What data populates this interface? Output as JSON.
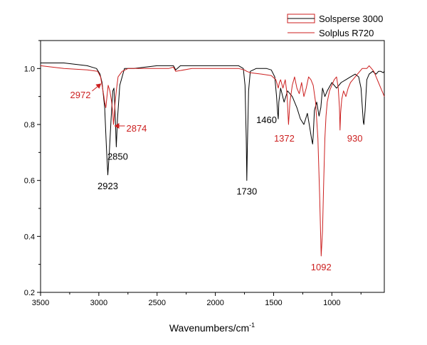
{
  "chart_data": {
    "type": "line",
    "title": "",
    "xlabel": "Wavenumbers/cm",
    "xlabel_superscript": "-1",
    "ylabel": "",
    "xlim": [
      3500,
      550
    ],
    "ylim": [
      0.2,
      1.1
    ],
    "x_reversed": true,
    "grid": false,
    "legend_position": "top-right",
    "x_ticks": [
      "3500",
      "3000",
      "2500",
      "2000",
      "1500",
      "1000"
    ],
    "y_ticks": [
      "0.2",
      "0.4",
      "0.6",
      "0.8",
      "1.0"
    ],
    "series": [
      {
        "name": "Solsperse 3000",
        "color": "#000000",
        "x": [
          3500,
          3300,
          3100,
          3020,
          2990,
          2972,
          2950,
          2935,
          2923,
          2910,
          2895,
          2880,
          2870,
          2860,
          2850,
          2840,
          2820,
          2780,
          2700,
          2500,
          2360,
          2340,
          2300,
          2000,
          1800,
          1760,
          1745,
          1735,
          1730,
          1725,
          1715,
          1700,
          1650,
          1560,
          1520,
          1490,
          1475,
          1465,
          1460,
          1455,
          1440,
          1410,
          1380,
          1340,
          1300,
          1270,
          1240,
          1210,
          1190,
          1175,
          1165,
          1160,
          1150,
          1130,
          1110,
          1095,
          1080,
          1060,
          1040,
          1000,
          960,
          920,
          880,
          840,
          800,
          770,
          750,
          740,
          730,
          725,
          715,
          700,
          680,
          650,
          620,
          600,
          580,
          560,
          550
        ],
        "y": [
          1.02,
          1.02,
          1.01,
          1.0,
          0.98,
          0.95,
          0.86,
          0.72,
          0.62,
          0.7,
          0.82,
          0.92,
          0.93,
          0.84,
          0.72,
          0.82,
          0.94,
          1.0,
          1.0,
          1.01,
          1.01,
          0.995,
          1.01,
          1.01,
          1.01,
          1.0,
          0.94,
          0.75,
          0.6,
          0.72,
          0.92,
          0.99,
          1.0,
          1.0,
          0.995,
          0.97,
          0.9,
          0.84,
          0.82,
          0.88,
          0.93,
          0.88,
          0.92,
          0.9,
          0.86,
          0.82,
          0.8,
          0.84,
          0.79,
          0.75,
          0.73,
          0.76,
          0.85,
          0.88,
          0.83,
          0.86,
          0.93,
          0.9,
          0.92,
          0.95,
          0.93,
          0.95,
          0.96,
          0.97,
          0.98,
          0.97,
          0.93,
          0.87,
          0.81,
          0.8,
          0.85,
          0.96,
          0.98,
          0.99,
          0.98,
          0.99,
          0.99,
          0.985,
          0.99
        ]
      },
      {
        "name": "Solplus R720",
        "color": "#cc1f1f",
        "x": [
          3500,
          3300,
          3100,
          3010,
          2985,
          2972,
          2960,
          2950,
          2940,
          2930,
          2920,
          2905,
          2890,
          2880,
          2874,
          2868,
          2860,
          2850,
          2835,
          2800,
          2750,
          2600,
          2400,
          2360,
          2340,
          2200,
          2000,
          1800,
          1750,
          1730,
          1700,
          1600,
          1520,
          1480,
          1460,
          1450,
          1440,
          1420,
          1400,
          1385,
          1372,
          1360,
          1340,
          1320,
          1300,
          1280,
          1260,
          1240,
          1220,
          1200,
          1180,
          1160,
          1140,
          1120,
          1105,
          1092,
          1080,
          1070,
          1060,
          1050,
          1040,
          1020,
          1000,
          980,
          960,
          945,
          935,
          930,
          925,
          915,
          900,
          880,
          860,
          840,
          820,
          800,
          780,
          760,
          740,
          720,
          700,
          680,
          660,
          640,
          620,
          600,
          580,
          560,
          550
        ],
        "y": [
          1.01,
          1.0,
          0.995,
          0.99,
          0.97,
          0.94,
          0.91,
          0.88,
          0.86,
          0.9,
          0.94,
          0.92,
          0.88,
          0.84,
          0.8,
          0.83,
          0.88,
          0.92,
          0.97,
          0.99,
          1.0,
          1.0,
          1.0,
          1.005,
          0.99,
          1.0,
          1.0,
          1.0,
          0.995,
          0.99,
          0.985,
          0.98,
          0.975,
          0.96,
          0.93,
          0.95,
          0.96,
          0.93,
          0.96,
          0.91,
          0.8,
          0.88,
          0.94,
          0.97,
          0.93,
          0.91,
          0.95,
          0.9,
          0.93,
          0.97,
          0.96,
          0.94,
          0.88,
          0.75,
          0.55,
          0.33,
          0.42,
          0.6,
          0.75,
          0.83,
          0.88,
          0.92,
          0.94,
          0.96,
          0.97,
          0.93,
          0.86,
          0.78,
          0.84,
          0.89,
          0.92,
          0.9,
          0.93,
          0.95,
          0.96,
          0.97,
          0.98,
          0.99,
          1.0,
          1.0,
          1.0,
          1.01,
          1.0,
          0.99,
          0.97,
          0.95,
          0.93,
          0.91,
          0.9
        ]
      }
    ],
    "annotations": [
      {
        "text": "2972",
        "x": 2972,
        "y": 0.95,
        "color": "#cc1f1f",
        "arrow": true,
        "anchor": "left"
      },
      {
        "text": "2874",
        "x": 2874,
        "y": 0.8,
        "color": "#cc1f1f",
        "arrow": true,
        "anchor": "right"
      },
      {
        "text": "2923",
        "x": 2923,
        "y": 0.62,
        "color": "#000000",
        "arrow": false,
        "anchor": "below"
      },
      {
        "text": "2850",
        "x": 2850,
        "y": 0.72,
        "color": "#000000",
        "arrow": false,
        "anchor": "below"
      },
      {
        "text": "1730",
        "x": 1730,
        "y": 0.6,
        "color": "#000000",
        "arrow": false,
        "anchor": "below"
      },
      {
        "text": "1460",
        "x": 1460,
        "y": 0.82,
        "color": "#000000",
        "arrow": false,
        "anchor": "left"
      },
      {
        "text": "1372",
        "x": 1372,
        "y": 0.8,
        "color": "#cc1f1f",
        "arrow": false,
        "anchor": "below"
      },
      {
        "text": "930",
        "x": 930,
        "y": 0.78,
        "color": "#cc1f1f",
        "arrow": false,
        "anchor": "right-below"
      },
      {
        "text": "1092",
        "x": 1092,
        "y": 0.33,
        "color": "#cc1f1f",
        "arrow": false,
        "anchor": "below"
      }
    ]
  }
}
